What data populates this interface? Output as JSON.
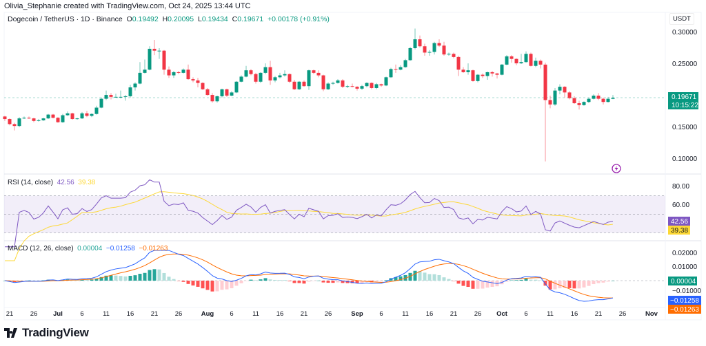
{
  "credit": "Olivia_Stephanie created with TradingView.com, Oct 24, 2025 13:44 UTC",
  "header": {
    "symbol": "Dogecoin / TetherUS · 1D · Binance",
    "o_label": "O",
    "o": "0.19492",
    "h_label": "H",
    "h": "0.20095",
    "l_label": "L",
    "l": "0.19434",
    "c_label": "C",
    "c": "0.19671",
    "change": "+0.00178 (+0.91%)"
  },
  "currency": "USDT",
  "price_axis": {
    "ticks": [
      "0.30000",
      "0.25000",
      "0.15000",
      "0.10000"
    ],
    "range": [
      0.08,
      0.32
    ]
  },
  "last_price": {
    "value": "0.19671",
    "countdown": "10:15:22"
  },
  "rsi": {
    "label": "RSI (14, close)",
    "value": "42.56",
    "ma": "39.38",
    "ticks": [
      "80.00",
      "60.00"
    ],
    "upper": 70,
    "middle": 50,
    "lower": 30
  },
  "macd": {
    "label": "MACD (12, 26, close)",
    "hist": "0.00004",
    "macd": "−0.01258",
    "signal": "−0.01263",
    "ticks": [
      "0.02000",
      "0.01000"
    ],
    "hidden_tick": "−0.01000"
  },
  "x_axis": [
    {
      "label": "21",
      "date": "2025-06-21"
    },
    {
      "label": "26",
      "date": "2025-06-26"
    },
    {
      "label": "Jul",
      "date": "2025-07-01",
      "bold": true
    },
    {
      "label": "6",
      "date": "2025-07-06"
    },
    {
      "label": "11",
      "date": "2025-07-11"
    },
    {
      "label": "16",
      "date": "2025-07-16"
    },
    {
      "label": "21",
      "date": "2025-07-21"
    },
    {
      "label": "26",
      "date": "2025-07-26"
    },
    {
      "label": "Aug",
      "date": "2025-08-01",
      "bold": true
    },
    {
      "label": "6",
      "date": "2025-08-06"
    },
    {
      "label": "11",
      "date": "2025-08-11"
    },
    {
      "label": "16",
      "date": "2025-08-16"
    },
    {
      "label": "21",
      "date": "2025-08-21"
    },
    {
      "label": "26",
      "date": "2025-08-26"
    },
    {
      "label": "Sep",
      "date": "2025-09-01",
      "bold": true
    },
    {
      "label": "6",
      "date": "2025-09-06"
    },
    {
      "label": "11",
      "date": "2025-09-11"
    },
    {
      "label": "16",
      "date": "2025-09-16"
    },
    {
      "label": "21",
      "date": "2025-09-21"
    },
    {
      "label": "26",
      "date": "2025-09-26"
    },
    {
      "label": "Oct",
      "date": "2025-10-01",
      "bold": true
    },
    {
      "label": "6",
      "date": "2025-10-06"
    },
    {
      "label": "11",
      "date": "2025-10-11"
    },
    {
      "label": "16",
      "date": "2025-10-16"
    },
    {
      "label": "21",
      "date": "2025-10-21"
    },
    {
      "label": "26",
      "date": "2025-10-26"
    },
    {
      "label": "Nov",
      "date": "2025-11-01",
      "bold": true
    }
  ],
  "colors": {
    "up": "#089981",
    "down": "#f23645",
    "rsi": "#7e57c2",
    "rsi_ma": "#fdd835",
    "macd": "#2962ff",
    "signal": "#ff6d00",
    "hist_up": "#26a69a",
    "hist_up_light": "#b2dfdb",
    "hist_down": "#ff5252",
    "hist_down_light": "#ffcdd2"
  },
  "brand": "TradingView",
  "chart_data": {
    "type": "candlestick",
    "first_date": "2025-06-20",
    "interval": "1D",
    "ohlc": [
      [
        0.167,
        0.168,
        0.16,
        0.163
      ],
      [
        0.163,
        0.164,
        0.153,
        0.155
      ],
      [
        0.155,
        0.157,
        0.145,
        0.152
      ],
      [
        0.152,
        0.166,
        0.15,
        0.164
      ],
      [
        0.164,
        0.167,
        0.163,
        0.165
      ],
      [
        0.165,
        0.167,
        0.163,
        0.164
      ],
      [
        0.164,
        0.165,
        0.158,
        0.16
      ],
      [
        0.16,
        0.163,
        0.159,
        0.161
      ],
      [
        0.161,
        0.165,
        0.16,
        0.164
      ],
      [
        0.164,
        0.171,
        0.163,
        0.17
      ],
      [
        0.17,
        0.171,
        0.164,
        0.165
      ],
      [
        0.165,
        0.166,
        0.157,
        0.158
      ],
      [
        0.158,
        0.171,
        0.157,
        0.169
      ],
      [
        0.169,
        0.175,
        0.168,
        0.172
      ],
      [
        0.172,
        0.173,
        0.162,
        0.163
      ],
      [
        0.163,
        0.165,
        0.162,
        0.164
      ],
      [
        0.164,
        0.174,
        0.163,
        0.172
      ],
      [
        0.172,
        0.176,
        0.166,
        0.168
      ],
      [
        0.168,
        0.172,
        0.166,
        0.171
      ],
      [
        0.171,
        0.184,
        0.17,
        0.181
      ],
      [
        0.181,
        0.197,
        0.18,
        0.195
      ],
      [
        0.195,
        0.208,
        0.193,
        0.201
      ],
      [
        0.201,
        0.204,
        0.194,
        0.198
      ],
      [
        0.198,
        0.203,
        0.197,
        0.198
      ],
      [
        0.198,
        0.208,
        0.196,
        0.198
      ],
      [
        0.198,
        0.201,
        0.192,
        0.199
      ],
      [
        0.199,
        0.217,
        0.197,
        0.213
      ],
      [
        0.213,
        0.221,
        0.208,
        0.219
      ],
      [
        0.219,
        0.253,
        0.218,
        0.236
      ],
      [
        0.236,
        0.257,
        0.235,
        0.241
      ],
      [
        0.241,
        0.278,
        0.24,
        0.274
      ],
      [
        0.274,
        0.288,
        0.264,
        0.271
      ],
      [
        0.271,
        0.275,
        0.258,
        0.271
      ],
      [
        0.271,
        0.272,
        0.233,
        0.241
      ],
      [
        0.241,
        0.246,
        0.228,
        0.232
      ],
      [
        0.232,
        0.239,
        0.228,
        0.237
      ],
      [
        0.237,
        0.239,
        0.234,
        0.236
      ],
      [
        0.236,
        0.243,
        0.235,
        0.241
      ],
      [
        0.241,
        0.249,
        0.225,
        0.226
      ],
      [
        0.226,
        0.229,
        0.221,
        0.224
      ],
      [
        0.224,
        0.228,
        0.213,
        0.22
      ],
      [
        0.22,
        0.221,
        0.209,
        0.21
      ],
      [
        0.21,
        0.212,
        0.2,
        0.201
      ],
      [
        0.201,
        0.204,
        0.189,
        0.191
      ],
      [
        0.191,
        0.2,
        0.189,
        0.199
      ],
      [
        0.199,
        0.211,
        0.197,
        0.21
      ],
      [
        0.21,
        0.211,
        0.198,
        0.2
      ],
      [
        0.2,
        0.207,
        0.199,
        0.205
      ],
      [
        0.205,
        0.223,
        0.204,
        0.222
      ],
      [
        0.222,
        0.232,
        0.221,
        0.23
      ],
      [
        0.23,
        0.247,
        0.229,
        0.24
      ],
      [
        0.24,
        0.242,
        0.232,
        0.234
      ],
      [
        0.234,
        0.236,
        0.219,
        0.222
      ],
      [
        0.222,
        0.237,
        0.22,
        0.236
      ],
      [
        0.236,
        0.251,
        0.234,
        0.245
      ],
      [
        0.245,
        0.255,
        0.217,
        0.224
      ],
      [
        0.224,
        0.231,
        0.221,
        0.229
      ],
      [
        0.229,
        0.236,
        0.227,
        0.232
      ],
      [
        0.232,
        0.24,
        0.23,
        0.234
      ],
      [
        0.234,
        0.235,
        0.22,
        0.222
      ],
      [
        0.222,
        0.225,
        0.209,
        0.21
      ],
      [
        0.21,
        0.223,
        0.209,
        0.222
      ],
      [
        0.222,
        0.224,
        0.214,
        0.215
      ],
      [
        0.215,
        0.241,
        0.209,
        0.24
      ],
      [
        0.24,
        0.241,
        0.234,
        0.236
      ],
      [
        0.236,
        0.24,
        0.229,
        0.232
      ],
      [
        0.232,
        0.233,
        0.207,
        0.21
      ],
      [
        0.21,
        0.221,
        0.209,
        0.219
      ],
      [
        0.219,
        0.222,
        0.217,
        0.22
      ],
      [
        0.22,
        0.226,
        0.219,
        0.224
      ],
      [
        0.224,
        0.226,
        0.212,
        0.214
      ],
      [
        0.214,
        0.217,
        0.212,
        0.215
      ],
      [
        0.215,
        0.219,
        0.213,
        0.214
      ],
      [
        0.214,
        0.215,
        0.208,
        0.211
      ],
      [
        0.211,
        0.217,
        0.209,
        0.215
      ],
      [
        0.215,
        0.221,
        0.213,
        0.22
      ],
      [
        0.22,
        0.221,
        0.21,
        0.212
      ],
      [
        0.212,
        0.22,
        0.21,
        0.218
      ],
      [
        0.218,
        0.219,
        0.214,
        0.216
      ],
      [
        0.216,
        0.23,
        0.215,
        0.229
      ],
      [
        0.229,
        0.244,
        0.228,
        0.242
      ],
      [
        0.242,
        0.249,
        0.236,
        0.241
      ],
      [
        0.241,
        0.248,
        0.24,
        0.245
      ],
      [
        0.245,
        0.258,
        0.244,
        0.256
      ],
      [
        0.256,
        0.277,
        0.255,
        0.275
      ],
      [
        0.275,
        0.306,
        0.273,
        0.289
      ],
      [
        0.289,
        0.295,
        0.276,
        0.278
      ],
      [
        0.278,
        0.282,
        0.263,
        0.268
      ],
      [
        0.268,
        0.272,
        0.263,
        0.269
      ],
      [
        0.269,
        0.285,
        0.265,
        0.283
      ],
      [
        0.283,
        0.289,
        0.277,
        0.279
      ],
      [
        0.279,
        0.285,
        0.263,
        0.265
      ],
      [
        0.265,
        0.268,
        0.263,
        0.266
      ],
      [
        0.266,
        0.268,
        0.259,
        0.261
      ],
      [
        0.261,
        0.263,
        0.231,
        0.241
      ],
      [
        0.241,
        0.245,
        0.236,
        0.237
      ],
      [
        0.237,
        0.251,
        0.233,
        0.24
      ],
      [
        0.24,
        0.241,
        0.222,
        0.223
      ],
      [
        0.223,
        0.234,
        0.221,
        0.233
      ],
      [
        0.233,
        0.235,
        0.228,
        0.231
      ],
      [
        0.231,
        0.238,
        0.225,
        0.237
      ],
      [
        0.237,
        0.239,
        0.23,
        0.235
      ],
      [
        0.235,
        0.236,
        0.227,
        0.233
      ],
      [
        0.233,
        0.25,
        0.232,
        0.249
      ],
      [
        0.249,
        0.264,
        0.248,
        0.262
      ],
      [
        0.262,
        0.264,
        0.252,
        0.258
      ],
      [
        0.258,
        0.259,
        0.248,
        0.251
      ],
      [
        0.251,
        0.266,
        0.25,
        0.253
      ],
      [
        0.253,
        0.27,
        0.252,
        0.266
      ],
      [
        0.266,
        0.268,
        0.246,
        0.247
      ],
      [
        0.247,
        0.26,
        0.245,
        0.255
      ],
      [
        0.255,
        0.257,
        0.243,
        0.249
      ],
      [
        0.249,
        0.252,
        0.096,
        0.193
      ],
      [
        0.193,
        0.2,
        0.18,
        0.186
      ],
      [
        0.186,
        0.212,
        0.184,
        0.208
      ],
      [
        0.208,
        0.218,
        0.202,
        0.214
      ],
      [
        0.214,
        0.215,
        0.197,
        0.205
      ],
      [
        0.205,
        0.207,
        0.194,
        0.196
      ],
      [
        0.196,
        0.199,
        0.187,
        0.188
      ],
      [
        0.188,
        0.192,
        0.178,
        0.185
      ],
      [
        0.185,
        0.191,
        0.184,
        0.19
      ],
      [
        0.19,
        0.197,
        0.188,
        0.195
      ],
      [
        0.195,
        0.202,
        0.194,
        0.2
      ],
      [
        0.2,
        0.204,
        0.193,
        0.195
      ],
      [
        0.195,
        0.197,
        0.186,
        0.19
      ],
      [
        0.19,
        0.198,
        0.189,
        0.195
      ],
      [
        0.19492,
        0.20095,
        0.19434,
        0.19671
      ]
    ]
  }
}
